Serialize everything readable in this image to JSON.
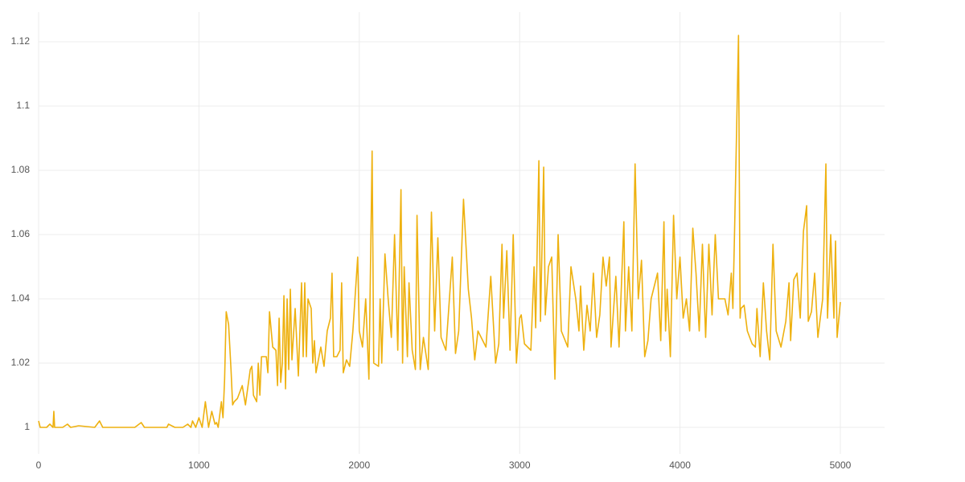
{
  "chart_data": {
    "type": "line",
    "color": "#eeb10f",
    "grid": true,
    "xlim": [
      0,
      5276
    ],
    "xticks": [
      0,
      1000,
      2000,
      3000,
      4000,
      5000
    ],
    "ylim": [
      0.99175,
      1.12925
    ],
    "yticks": [
      1,
      1.02,
      1.04,
      1.06,
      1.08,
      1.1,
      1.12
    ],
    "x": [
      0,
      10,
      50,
      70,
      90,
      95,
      100,
      150,
      180,
      200,
      250,
      350,
      380,
      400,
      450,
      500,
      580,
      600,
      640,
      660,
      700,
      750,
      800,
      810,
      850,
      880,
      900,
      930,
      950,
      960,
      980,
      1000,
      1020,
      1040,
      1060,
      1080,
      1100,
      1110,
      1120,
      1140,
      1150,
      1160,
      1170,
      1185,
      1200,
      1210,
      1220,
      1240,
      1270,
      1290,
      1320,
      1330,
      1340,
      1360,
      1370,
      1380,
      1390,
      1420,
      1430,
      1440,
      1460,
      1480,
      1490,
      1500,
      1510,
      1520,
      1530,
      1540,
      1550,
      1560,
      1570,
      1580,
      1600,
      1620,
      1640,
      1650,
      1660,
      1670,
      1680,
      1700,
      1710,
      1720,
      1730,
      1760,
      1780,
      1800,
      1820,
      1830,
      1840,
      1860,
      1880,
      1890,
      1900,
      1920,
      1940,
      1960,
      1990,
      2000,
      2020,
      2040,
      2060,
      2080,
      2090,
      2120,
      2130,
      2140,
      2160,
      2180,
      2200,
      2220,
      2240,
      2260,
      2270,
      2280,
      2300,
      2310,
      2330,
      2350,
      2360,
      2380,
      2400,
      2430,
      2450,
      2470,
      2490,
      2510,
      2540,
      2580,
      2600,
      2620,
      2650,
      2680,
      2700,
      2720,
      2740,
      2760,
      2790,
      2820,
      2850,
      2870,
      2890,
      2900,
      2920,
      2940,
      2960,
      2980,
      3000,
      3010,
      3030,
      3070,
      3090,
      3100,
      3120,
      3130,
      3150,
      3160,
      3180,
      3200,
      3220,
      3240,
      3260,
      3300,
      3320,
      3350,
      3370,
      3380,
      3400,
      3420,
      3440,
      3460,
      3480,
      3500,
      3520,
      3540,
      3560,
      3570,
      3600,
      3620,
      3650,
      3660,
      3680,
      3700,
      3720,
      3740,
      3760,
      3780,
      3800,
      3820,
      3840,
      3860,
      3880,
      3900,
      3910,
      3920,
      3940,
      3960,
      3980,
      4000,
      4020,
      4040,
      4060,
      4080,
      4100,
      4120,
      4140,
      4160,
      4180,
      4200,
      4220,
      4240,
      4280,
      4300,
      4320,
      4330,
      4340,
      4365,
      4375,
      4380,
      4400,
      4420,
      4450,
      4470,
      4480,
      4500,
      4520,
      4540,
      4560,
      4580,
      4600,
      4630,
      4660,
      4680,
      4690,
      4710,
      4730,
      4750,
      4770,
      4790,
      4800,
      4820,
      4840,
      4860,
      4890,
      4910,
      4920,
      4940,
      4960,
      4970,
      4980,
      5000
    ],
    "values": [
      1.002,
      1.0,
      1.0,
      1.001,
      1.0,
      1.005,
      1.0,
      1.0,
      1.001,
      1.0,
      1.0005,
      1.0,
      1.002,
      1.0,
      1.0,
      1.0,
      1.0,
      1.0,
      1.0015,
      1.0,
      1.0,
      1.0,
      1.0,
      1.001,
      1.0,
      1.0,
      1.0,
      1.001,
      1.0,
      1.002,
      1.0,
      1.003,
      1.0,
      1.008,
      1.0,
      1.005,
      1.001,
      1.0015,
      1.0,
      1.008,
      1.003,
      1.015,
      1.036,
      1.032,
      1.018,
      1.007,
      1.008,
      1.009,
      1.013,
      1.007,
      1.018,
      1.019,
      1.01,
      1.008,
      1.02,
      1.01,
      1.022,
      1.022,
      1.017,
      1.036,
      1.025,
      1.024,
      1.013,
      1.034,
      1.014,
      1.02,
      1.041,
      1.012,
      1.04,
      1.018,
      1.043,
      1.021,
      1.037,
      1.016,
      1.045,
      1.022,
      1.045,
      1.022,
      1.04,
      1.037,
      1.02,
      1.027,
      1.017,
      1.025,
      1.019,
      1.03,
      1.034,
      1.048,
      1.022,
      1.022,
      1.024,
      1.045,
      1.017,
      1.021,
      1.019,
      1.03,
      1.053,
      1.03,
      1.025,
      1.04,
      1.015,
      1.086,
      1.02,
      1.019,
      1.04,
      1.02,
      1.054,
      1.04,
      1.028,
      1.06,
      1.024,
      1.074,
      1.02,
      1.05,
      1.022,
      1.045,
      1.024,
      1.018,
      1.066,
      1.018,
      1.028,
      1.018,
      1.067,
      1.03,
      1.059,
      1.028,
      1.024,
      1.053,
      1.023,
      1.03,
      1.071,
      1.043,
      1.034,
      1.021,
      1.03,
      1.028,
      1.025,
      1.047,
      1.02,
      1.026,
      1.057,
      1.034,
      1.055,
      1.024,
      1.06,
      1.02,
      1.034,
      1.035,
      1.026,
      1.024,
      1.05,
      1.031,
      1.083,
      1.033,
      1.081,
      1.035,
      1.05,
      1.053,
      1.015,
      1.06,
      1.03,
      1.025,
      1.05,
      1.04,
      1.03,
      1.044,
      1.024,
      1.038,
      1.03,
      1.048,
      1.028,
      1.035,
      1.053,
      1.044,
      1.053,
      1.025,
      1.047,
      1.025,
      1.064,
      1.03,
      1.05,
      1.03,
      1.082,
      1.04,
      1.052,
      1.022,
      1.027,
      1.04,
      1.044,
      1.048,
      1.027,
      1.064,
      1.03,
      1.043,
      1.022,
      1.066,
      1.04,
      1.053,
      1.034,
      1.04,
      1.03,
      1.062,
      1.048,
      1.03,
      1.057,
      1.028,
      1.057,
      1.035,
      1.06,
      1.04,
      1.04,
      1.035,
      1.048,
      1.037,
      1.06,
      1.122,
      1.034,
      1.037,
      1.038,
      1.03,
      1.026,
      1.025,
      1.037,
      1.022,
      1.045,
      1.03,
      1.021,
      1.057,
      1.03,
      1.025,
      1.033,
      1.045,
      1.027,
      1.046,
      1.048,
      1.034,
      1.061,
      1.069,
      1.033,
      1.036,
      1.048,
      1.028,
      1.04,
      1.082,
      1.034,
      1.06,
      1.034,
      1.058,
      1.028,
      1.039
    ]
  }
}
